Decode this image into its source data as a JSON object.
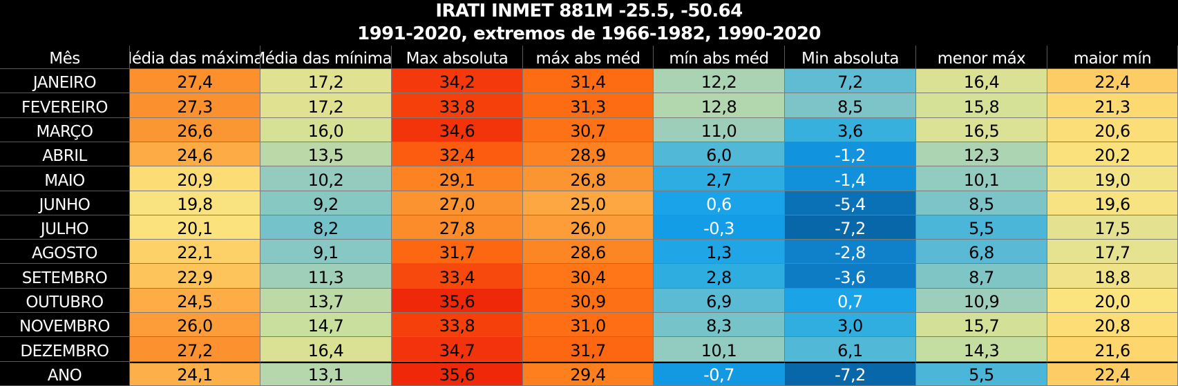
{
  "title": {
    "line1": "IRATI INMET 881M -25.5, -50.64",
    "line2": "1991-2020, extremos de 1966-1982, 1990-2020"
  },
  "chart_data": {
    "type": "table",
    "title": "IRATI INMET 881M -25.5, -50.64",
    "subtitle": "1991-2020, extremos de 1966-1982, 1990-2020",
    "row_header_label": "Mês",
    "columns": [
      "Média das máximas",
      "Média das mínimas",
      "Max absoluta",
      "máx abs méd",
      "mín abs méd",
      "Min absoluta",
      "menor máx",
      "maior mín"
    ],
    "rows": [
      {
        "label": "JANEIRO",
        "values": [
          "27,4",
          "17,2",
          "34,2",
          "31,4",
          "12,2",
          "7,2",
          "16,4",
          "22,4"
        ]
      },
      {
        "label": "FEVEREIRO",
        "values": [
          "27,3",
          "17,2",
          "33,8",
          "31,3",
          "12,8",
          "8,5",
          "15,8",
          "21,3"
        ]
      },
      {
        "label": "MARÇO",
        "values": [
          "26,6",
          "16,0",
          "34,6",
          "30,7",
          "11,0",
          "3,6",
          "16,5",
          "20,6"
        ]
      },
      {
        "label": "ABRIL",
        "values": [
          "24,6",
          "13,5",
          "32,4",
          "28,9",
          "6,0",
          "-1,2",
          "12,3",
          "20,2"
        ]
      },
      {
        "label": "MAIO",
        "values": [
          "20,9",
          "10,2",
          "29,1",
          "26,8",
          "2,7",
          "-1,4",
          "10,1",
          "19,0"
        ]
      },
      {
        "label": "JUNHO",
        "values": [
          "19,8",
          "9,2",
          "27,0",
          "25,0",
          "0,6",
          "-5,4",
          "8,5",
          "19,6"
        ]
      },
      {
        "label": "JULHO",
        "values": [
          "20,1",
          "8,2",
          "27,8",
          "26,0",
          "-0,3",
          "-7,2",
          "5,5",
          "17,5"
        ]
      },
      {
        "label": "AGOSTO",
        "values": [
          "22,1",
          "9,1",
          "31,7",
          "28,6",
          "1,3",
          "-2,8",
          "6,8",
          "17,7"
        ]
      },
      {
        "label": "SETEMBRO",
        "values": [
          "22,9",
          "11,3",
          "33,4",
          "30,4",
          "2,8",
          "-3,6",
          "8,7",
          "18,8"
        ]
      },
      {
        "label": "OUTUBRO",
        "values": [
          "24,5",
          "13,7",
          "35,6",
          "30,9",
          "6,9",
          "0,7",
          "10,9",
          "20,0"
        ]
      },
      {
        "label": "NOVEMBRO",
        "values": [
          "26,0",
          "14,7",
          "33,8",
          "31,0",
          "8,3",
          "3,0",
          "15,7",
          "20,8"
        ]
      },
      {
        "label": "DEZEMBRO",
        "values": [
          "27,2",
          "16,4",
          "34,7",
          "31,7",
          "10,1",
          "6,1",
          "14,3",
          "21,6"
        ]
      },
      {
        "label": "ANO",
        "values": [
          "24,1",
          "13,1",
          "35,6",
          "29,4",
          "-0,7",
          "-7,2",
          "5,5",
          "22,4"
        ]
      }
    ],
    "color_scale": [
      {
        "t": -7.2,
        "color": "#0867a8"
      },
      {
        "t": -3,
        "color": "#0f7fc9"
      },
      {
        "t": 0,
        "color": "#14a0ea"
      },
      {
        "t": 3,
        "color": "#30aee0"
      },
      {
        "t": 7,
        "color": "#5cbbd4"
      },
      {
        "t": 9,
        "color": "#86c7c4"
      },
      {
        "t": 12,
        "color": "#a8d2b5"
      },
      {
        "t": 15,
        "color": "#cde09a"
      },
      {
        "t": 18,
        "color": "#e8e28f"
      },
      {
        "t": 20,
        "color": "#fbe37e"
      },
      {
        "t": 22,
        "color": "#fdd36a"
      },
      {
        "t": 24,
        "color": "#fdb14a"
      },
      {
        "t": 27,
        "color": "#fb9330"
      },
      {
        "t": 30,
        "color": "#fe7a1a"
      },
      {
        "t": 32,
        "color": "#fd6410"
      },
      {
        "t": 34,
        "color": "#f43c0c"
      },
      {
        "t": 35.6,
        "color": "#f0280a"
      }
    ]
  }
}
